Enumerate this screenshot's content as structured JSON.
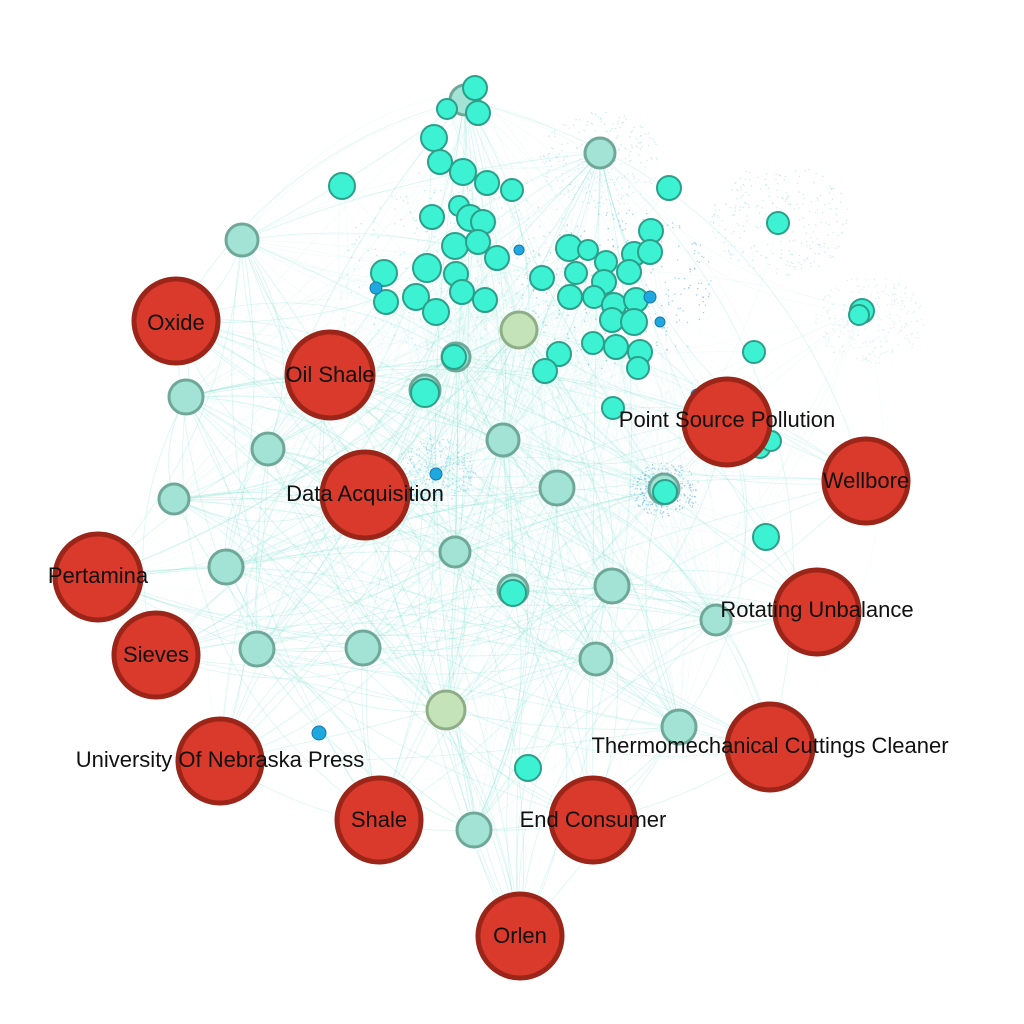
{
  "colors": {
    "background": "#ffffff",
    "hub_fill": "#d93a2b",
    "hub_stroke": "#9b2518",
    "edge": "#7ee0cf",
    "node_teal_fill": "#a2e3d5",
    "node_teal_stroke": "#6fa898",
    "node_cyan_fill": "#3cf2d2",
    "node_cyan_stroke": "#2c9f8a",
    "node_olive_fill": "#c5e3b8",
    "node_olive_stroke": "#8fae88",
    "node_blue_fill": "#1fa8e0",
    "node_blue_stroke": "#1478a8"
  },
  "labels": [
    "Oxide",
    "Oil Shale",
    "Point Source Pollution",
    "Wellbore",
    "Data Acquisition",
    "Pertamina",
    "Sieves",
    "Rotating Unbalance",
    "University Of Nebraska Press",
    "Thermomechanical Cuttings Cleaner",
    "Shale",
    "End Consumer",
    "Orlen"
  ]
}
